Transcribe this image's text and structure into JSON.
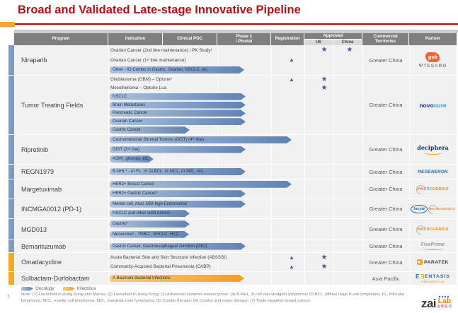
{
  "slide": {
    "title": "Broad and Validated Late-stage Innovative Pipeline",
    "page_number": "1",
    "note": "Note: (1) Launched in Hong Kong and Macau; (2) Launched in Hong Kong; (3) Advanced systemic mastocytosis; (4) B-NHL, B-cell non-Hodgkin lymphoma; DLBCL, diffuse large B-cell lymphoma; FL, follicular lymphoma; MCL, mantle cell lymphoma; MZL, marginal zone lymphoma; (5) Combo therapy; (6) Combo and mono therapy; (7) Triple-negative breast cancer."
  },
  "legend": [
    {
      "label": "Oncology",
      "type": "oncology"
    },
    {
      "label": "Infectious",
      "type": "infectious"
    }
  ],
  "markers": {
    "registration_glyph": "▲",
    "approved_glyph": "★"
  },
  "colors": {
    "title": "#B01218",
    "oncology": "#7E99C6",
    "infectious": "#F7A823",
    "marker": "#4A5A8C",
    "arrow_oncology": [
      "#AEC3DF",
      "#5F82B5"
    ],
    "arrow_infectious": [
      "#FDCE74",
      "#F69C1E"
    ]
  },
  "logo": {
    "zai": "zai",
    "lab": "Lab",
    "cn": "再鼎医药"
  },
  "table": {
    "header": {
      "program": "Program",
      "indication": "Indication",
      "clinical_poc": "Clinical POC",
      "phase3": [
        "Phase 3",
        "/ Pivotal"
      ],
      "registration": "Registration",
      "approved": "Approved",
      "us": "US",
      "china": "China",
      "territories": [
        "Commercial",
        "Territories"
      ],
      "partner": "Partner"
    },
    "rows": [
      {
        "program": "Niraparib",
        "type": "oncology",
        "territory": "Greater China",
        "partner": {
          "layout": "stack",
          "marks": [
            {
              "kind": "gsk",
              "text": "gsk"
            },
            {
              "kind": "tesaro",
              "text": "TESARO",
              "icon": "Ψ"
            }
          ]
        },
        "lines": [
          {
            "text": "Ovarian Cancer (2nd line maintenance) / PK Study¹",
            "us": true,
            "china": true
          },
          {
            "text": "Ovarian Cancer (1ˢᵗ line maintenance)",
            "reg": true
          },
          {
            "text": "Other - IO Combo in Gastric, Ovarian, NSCLC, etc.",
            "arrow": 190
          }
        ]
      },
      {
        "program": "Tumor Treating Fields",
        "type": "oncology",
        "territory": "Greater China",
        "partner": {
          "layout": "stack",
          "marks": [
            {
              "kind": "novocure",
              "parts": [
                "novo",
                "cure"
              ]
            }
          ]
        },
        "lines": [
          {
            "text": "Glioblastoma (GBM) – Optune²",
            "reg": true,
            "us": true
          },
          {
            "text": "Mesothelioma – Optune Lua",
            "us": true
          },
          {
            "text": "NSCLC",
            "arrow": 192
          },
          {
            "text": "Brain Metastases",
            "arrow": 192
          },
          {
            "text": "Pancreatic Cancer",
            "arrow": 192
          },
          {
            "text": "Ovarian Cancer",
            "arrow": 192
          },
          {
            "text": "Gastric Cancer",
            "arrow": 113
          }
        ]
      },
      {
        "program": "Ripretinib",
        "type": "oncology",
        "territory": "Greater China",
        "partner": {
          "layout": "stack",
          "marks": [
            {
              "kind": "deciphera",
              "text": "deciphera"
            }
          ]
        },
        "lines": [
          {
            "text": "Gastrointestinal Stromal Tumors (GIST) (4ᵗʰ line)",
            "arrow": 257
          },
          {
            "text": "GIST (2ⁿᵈ line)",
            "arrow": 192
          },
          {
            "text": "ASM³, gliomas, etc.",
            "arrow": 62
          }
        ]
      },
      {
        "program": "REGN1979",
        "type": "oncology",
        "territory": "Greater China",
        "partner": {
          "layout": "stack",
          "marks": [
            {
              "kind": "regeneron",
              "text": "REGENERON"
            }
          ]
        },
        "lines": [
          {
            "text": "B-NHL⁴ - r/r FL, r/r DLBCL, r/r MCL, r/r MZL, etc.",
            "arrow": 192
          }
        ]
      },
      {
        "program": "Margetuximab",
        "type": "oncology",
        "territory": "Greater China",
        "partner": {
          "layout": "stack",
          "marks": [
            {
              "kind": "macrogenics",
              "text": "MACROGENICS"
            }
          ]
        },
        "lines": [
          {
            "text": "HER2+ Breast Cancer",
            "arrow": 257
          },
          {
            "text": "HER2+ Gastric Cancer⁵",
            "arrow": 192
          }
        ]
      },
      {
        "program": "INCMGA0012 (PD-1)",
        "type": "oncology",
        "territory": "Greater China",
        "partner": {
          "layout": "row",
          "marks": [
            {
              "kind": "incyte",
              "text": "Incyte"
            },
            {
              "kind": "macrogenics",
              "text": "MACROGENICS",
              "small": true
            }
          ]
        },
        "lines": [
          {
            "text": "Merkel cell, Anal, MSI-high Endometrial",
            "arrow": 192
          },
          {
            "text": "NSCLC and other solid tumors",
            "arrow": 113
          }
        ]
      },
      {
        "program": "MGD013",
        "type": "oncology",
        "territory": "Greater China",
        "partner": {
          "layout": "stack",
          "marks": [
            {
              "kind": "macrogenics",
              "text": "MACROGENICS"
            }
          ]
        },
        "lines": [
          {
            "text": "Gastric⁶",
            "arrow": 113
          },
          {
            "text": "Melanoma⁶ , TNBC⁷, NSCLC, HCC",
            "arrow": 112
          }
        ]
      },
      {
        "program": "Bemarituzumab",
        "type": "oncology",
        "territory": "Greater China",
        "partner": {
          "layout": "stack",
          "marks": [
            {
              "kind": "fiveprime",
              "text": "FivePrime"
            }
          ]
        },
        "lines": [
          {
            "text": "Gastric Cancer, Gastroesophageal Junction (GEJ)",
            "arrow": 192
          }
        ]
      },
      {
        "program": "Omadacycline",
        "type": "infectious",
        "territory": "Greater China",
        "partner": {
          "layout": "stack",
          "marks": [
            {
              "kind": "paratek",
              "text": "PARATEK"
            }
          ]
        },
        "lines": [
          {
            "text": "Acute Bacterial Skin and Skin Structure Infection (ABSSSI)",
            "reg": true,
            "us": true
          },
          {
            "text": "Community-Acquired Bacterial Pneumonia (CABP)",
            "reg": true,
            "us": true
          }
        ]
      },
      {
        "program": "Sulbactam-Durlobactam",
        "type": "infectious",
        "territory": "Asia Pacific",
        "partner": {
          "layout": "stack",
          "marks": [
            {
              "kind": "entasis",
              "icon": "E",
              "text": "ENTASIS",
              "sub": "THERAPEUTICS"
            }
          ]
        },
        "lines": [
          {
            "text": "A.Baumani Bacterial Infections",
            "arrow": 190
          }
        ]
      }
    ]
  }
}
